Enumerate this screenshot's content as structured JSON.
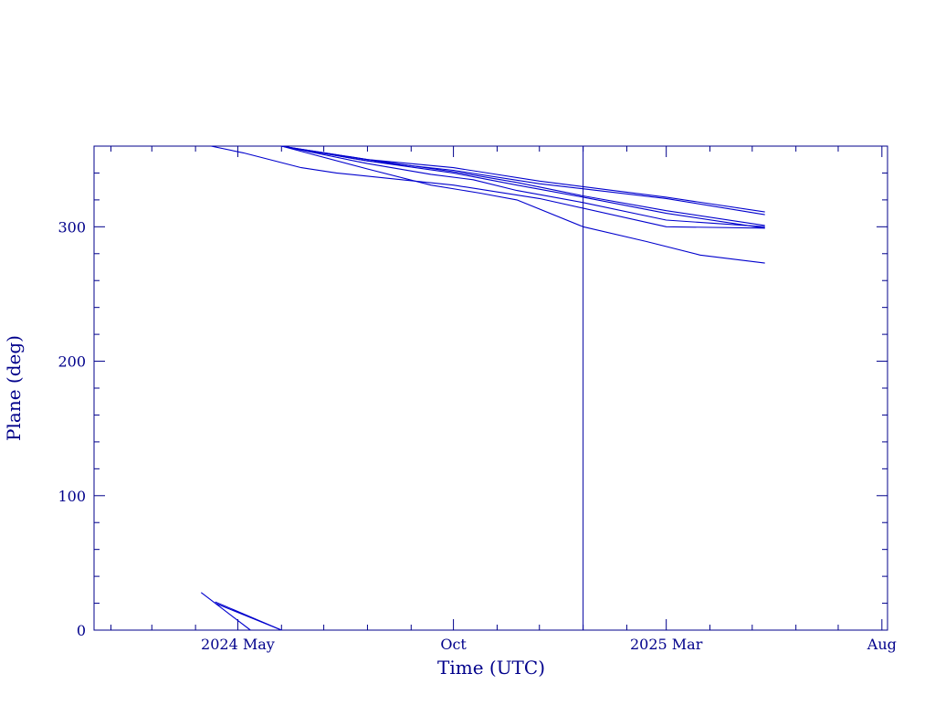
{
  "chart_data": {
    "type": "line",
    "xlabel": "Time (UTC)",
    "ylabel": "Plane (deg)",
    "ylim": [
      0,
      360
    ],
    "xlim": [
      "2024-01-20",
      "2025-08-05"
    ],
    "grid": false,
    "legend": "none",
    "colors": {
      "axis": "#00008b",
      "series": "#0000cd",
      "marker": "#0000a0"
    },
    "x_tick_labels": [
      {
        "date": "2024-05-01",
        "label": "2024 May"
      },
      {
        "date": "2024-10-01",
        "label": "Oct"
      },
      {
        "date": "2025-03-01",
        "label": "2025 Mar"
      },
      {
        "date": "2025-08-01",
        "label": "Aug"
      }
    ],
    "y_ticks": [
      0,
      100,
      200,
      300
    ],
    "vertical_marker": {
      "x": "2025-01-01"
    },
    "series": [
      {
        "x": [
          "2024-04-12",
          "2024-05-05",
          "2024-06-15",
          "2024-07-10",
          "2024-10-01",
          "2024-12-01",
          "2025-03-01",
          "2025-05-10"
        ],
        "y": [
          360,
          355,
          344,
          340,
          331,
          321,
          300,
          299
        ]
      },
      {
        "x": [
          "2024-06-01",
          "2024-08-01",
          "2024-10-01",
          "2024-12-01",
          "2025-03-01",
          "2025-05-10"
        ],
        "y": [
          360,
          350,
          344,
          334,
          322,
          311
        ]
      },
      {
        "x": [
          "2024-06-01",
          "2024-08-01",
          "2024-10-01",
          "2024-12-01",
          "2025-03-01",
          "2025-05-10"
        ],
        "y": [
          360,
          349,
          342,
          332,
          321,
          309
        ]
      },
      {
        "x": [
          "2024-06-01",
          "2024-08-01",
          "2024-10-01",
          "2024-11-15",
          "2025-01-01",
          "2025-03-01",
          "2025-05-10"
        ],
        "y": [
          360,
          350,
          341,
          333,
          323,
          312,
          301
        ]
      },
      {
        "x": [
          "2024-06-01",
          "2024-08-01",
          "2024-10-01",
          "2024-11-15",
          "2025-01-01",
          "2025-03-01",
          "2025-05-10"
        ],
        "y": [
          360,
          349,
          340,
          331,
          322,
          310,
          299
        ]
      },
      {
        "x": [
          "2024-06-01",
          "2024-08-01",
          "2024-09-15",
          "2024-10-15",
          "2024-11-15",
          "2025-01-01",
          "2025-03-01",
          "2025-05-10"
        ],
        "y": [
          360,
          347,
          339,
          335,
          327,
          318,
          305,
          300
        ]
      },
      {
        "x": [
          "2024-06-01",
          "2024-08-01",
          "2024-09-15",
          "2024-10-20",
          "2024-11-15",
          "2025-01-01",
          "2025-02-15",
          "2025-03-25",
          "2025-05-10"
        ],
        "y": [
          360,
          343,
          331,
          325,
          320,
          300,
          289,
          279,
          273
        ]
      },
      {
        "x": [
          "2024-04-05",
          "2024-04-15",
          "2024-06-01"
        ],
        "y": [
          28,
          20,
          0
        ]
      },
      {
        "x": [
          "2024-04-15",
          "2024-06-01"
        ],
        "y": [
          21,
          0
        ]
      },
      {
        "x": [
          "2024-04-15",
          "2024-05-10"
        ],
        "y": [
          20,
          0
        ]
      }
    ]
  }
}
